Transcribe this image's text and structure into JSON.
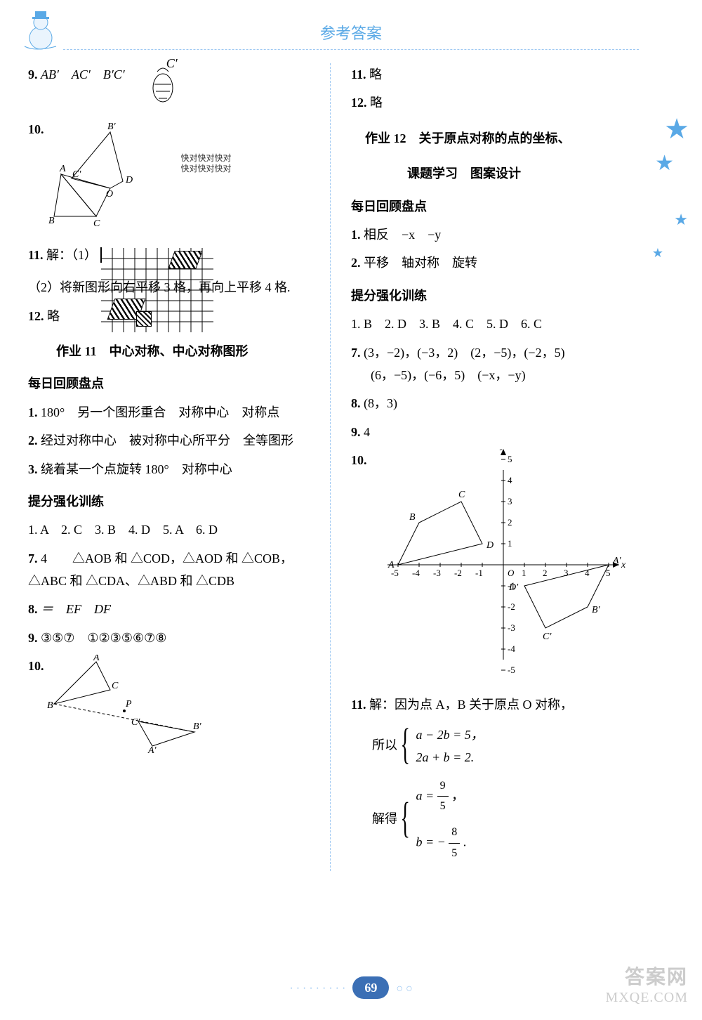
{
  "header": {
    "title": "参考答案"
  },
  "footer": {
    "page": "69",
    "dots_left": "· · · · · · · · ·",
    "dots_right": "○ ○"
  },
  "watermark": {
    "line1": "答案网",
    "line2": "MXQE.COM"
  },
  "left": {
    "q9": {
      "num": "9.",
      "text": "AB′　AC′　B′C′"
    },
    "q9_extra": "C′",
    "q10": {
      "num": "10."
    },
    "note1": "快对快对快对",
    "note2": "快对快对快对",
    "fig10_labels": {
      "A": "A",
      "B": "B",
      "C": "C",
      "D": "D",
      "O": "O",
      "Bp": "B′",
      "Cp": "C′"
    },
    "q11": {
      "num": "11.",
      "prefix": "解：（1）"
    },
    "q11_2": "（2）将新图形向右平移 3 格，再向上平移 4 格.",
    "q12": {
      "num": "12.",
      "text": "略"
    },
    "title11": "作业 11　中心对称、中心对称图形",
    "sectA": "每日回顾盘点",
    "a1": {
      "num": "1.",
      "text": "180°　另一个图形重合　对称中心　对称点"
    },
    "a2": {
      "num": "2.",
      "text": "经过对称中心　被对称中心所平分　全等图形"
    },
    "a3": {
      "num": "3.",
      "text": "绕着某一个点旋转 180°　对称中心"
    },
    "sectB": "提分强化训练",
    "b_row": "1. A　2. C　3. B　4. D　5. A　6. D",
    "b7": {
      "num": "7.",
      "text": "4　　△AOB 和 △COD，△AOD 和 △COB，△ABC 和 △CDA、△ABD 和 △CDB"
    },
    "b8": {
      "num": "8.",
      "text": "＝　EF　DF"
    },
    "b9": {
      "num": "9.",
      "text": "③⑤⑦　①②③⑤⑥⑦⑧"
    },
    "b10": {
      "num": "10."
    },
    "fig_b10_labels": {
      "A": "A",
      "B": "B",
      "C": "C",
      "P": "P",
      "Ap": "A′",
      "Bp": "B′",
      "Cp": "C′"
    }
  },
  "right": {
    "q11": {
      "num": "11.",
      "text": "略"
    },
    "q12": {
      "num": "12.",
      "text": "略"
    },
    "title12a": "作业 12　关于原点对称的点的坐标、",
    "title12b": "课题学习　图案设计",
    "sectA": "每日回顾盘点",
    "a1": {
      "num": "1.",
      "text": "相反　−x　−y"
    },
    "a2": {
      "num": "2.",
      "text": "平移　轴对称　旋转"
    },
    "sectB": "提分强化训练",
    "b_row": "1. B　2. D　3. B　4. C　5. D　6. C",
    "b7": {
      "num": "7.",
      "l1": "(3，−2)，(−3，2)　(2，−5)，(−2，5)",
      "l2": "(6，−5)，(−6，5)　(−x，−y)"
    },
    "b8": {
      "num": "8.",
      "text": "(8，3)"
    },
    "b9": {
      "num": "9.",
      "text": "4"
    },
    "b10": {
      "num": "10."
    },
    "chart": {
      "type": "coordinate-plot",
      "xlim": [
        -5,
        5
      ],
      "ylim": [
        -5,
        5
      ],
      "xticks": [
        -5,
        -4,
        -3,
        -2,
        -1,
        1,
        2,
        3,
        4,
        5
      ],
      "yticks": [
        -5,
        -4,
        -3,
        -2,
        -1,
        1,
        2,
        3,
        4,
        5
      ],
      "axis_labels": {
        "x": "x",
        "y": "y",
        "origin": "O"
      },
      "quad1": {
        "points": {
          "A": [
            -5,
            0
          ],
          "B": [
            -4,
            2
          ],
          "C": [
            -2,
            3
          ],
          "D": [
            -1,
            1
          ]
        },
        "color": "#000000"
      },
      "quad2": {
        "points": {
          "Ap": [
            5,
            0
          ],
          "Bp": [
            4,
            -2
          ],
          "Cp": [
            2,
            -3
          ],
          "Dp": [
            1,
            -1
          ]
        },
        "labels": {
          "Ap": "A′",
          "Bp": "B′",
          "Cp": "C′",
          "Dp": "D′"
        },
        "color": "#000000"
      },
      "axis_color": "#000000",
      "label_fontsize": 14,
      "tick_fontsize": 13
    },
    "b11": {
      "num": "11.",
      "lead": "解：因为点 A，B 关于原点 O 对称，",
      "so": "所以",
      "sys1a": "a − 2b = 5，",
      "sys1b": "2a + b = 2.",
      "solve": "解得",
      "sol_a_lhs": "a =",
      "sol_a_num": "9",
      "sol_a_den": "5",
      "sol_a_tail": "，",
      "sol_b_lhs": "b = −",
      "sol_b_num": "8",
      "sol_b_den": "5",
      "sol_b_tail": "."
    }
  },
  "colors": {
    "accent": "#5aa9e6",
    "badge": "#3b6fb5",
    "text": "#000000",
    "watermark": "#cccccc"
  }
}
